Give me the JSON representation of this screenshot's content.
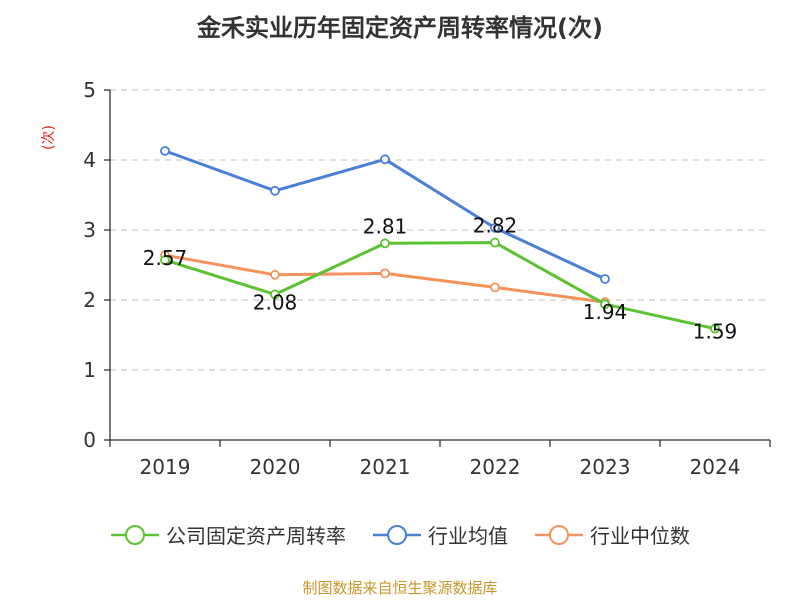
{
  "chart_data": {
    "type": "line",
    "title": "金禾实业历年固定资产周转率情况(次)",
    "xlabel": "",
    "ylabel": "(次)",
    "ylim": [
      0,
      5
    ],
    "yticks": [
      0,
      1,
      2,
      3,
      4,
      5
    ],
    "grid": true,
    "legend_position": "bottom",
    "categories": [
      "2019",
      "2020",
      "2021",
      "2022",
      "2023",
      "2024"
    ],
    "series": [
      {
        "name": "公司固定资产周转率",
        "color": "#5bc232",
        "values": [
          2.57,
          2.08,
          2.81,
          2.82,
          1.94,
          1.59
        ],
        "labels": [
          "2.57",
          "2.08",
          "2.81",
          "2.82",
          "1.94",
          "1.59"
        ]
      },
      {
        "name": "行业均值",
        "color": "#4a7fd8",
        "values": [
          4.13,
          3.56,
          4.01,
          3.03,
          2.3,
          null
        ]
      },
      {
        "name": "行业中位数",
        "color": "#f5915a",
        "values": [
          2.64,
          2.36,
          2.38,
          2.18,
          1.97,
          null
        ]
      }
    ]
  },
  "source": "制图数据来自恒生聚源数据库"
}
